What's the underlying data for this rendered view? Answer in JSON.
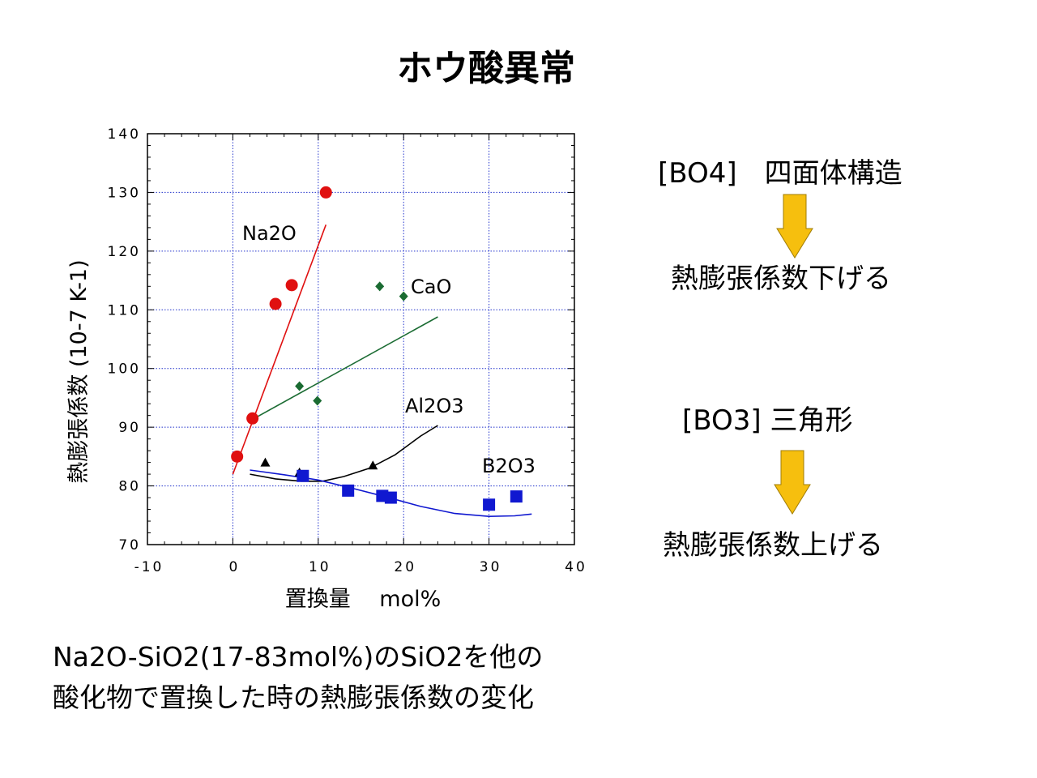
{
  "page": {
    "title": "ホウ酸異常",
    "side": {
      "bo4": "[BO4]　四面体構造",
      "result_down": "熱膨張係数下げる",
      "bo3": "[BO3]  三角形",
      "result_up": "熱膨張係数上げる",
      "arrow_color": "#f6bf0e",
      "arrow_icon": "down-arrow-icon"
    },
    "caption": {
      "line1": "Na2O-SiO2(17-83mol%)のSiO2を他の",
      "line2": "酸化物で置換した時の熱膨張係数の変化"
    }
  },
  "chart_data": {
    "type": "scatter",
    "title": "",
    "xlabel": "置換量　 mol%",
    "ylabel": "熱膨張係数 (10-7 K-1)",
    "xlim": [
      -10,
      40
    ],
    "ylim": [
      70,
      140
    ],
    "xticks": [
      -10,
      0,
      10,
      20,
      30,
      40
    ],
    "yticks": [
      70,
      80,
      90,
      100,
      110,
      120,
      130,
      140
    ],
    "grid": true,
    "series": [
      {
        "name": "Na2O",
        "color": "#e01010",
        "marker": "circle",
        "points": [
          [
            0.5,
            85
          ],
          [
            2.3,
            91.5
          ],
          [
            5,
            111
          ],
          [
            6.9,
            114.2
          ],
          [
            10.9,
            130
          ]
        ],
        "fit": [
          [
            0,
            82
          ],
          [
            10.9,
            124.5
          ]
        ]
      },
      {
        "name": "CaO",
        "color": "#1a6b32",
        "marker": "diamond",
        "points": [
          [
            7.8,
            97
          ],
          [
            9.9,
            94.5
          ],
          [
            17.2,
            114
          ],
          [
            20,
            112.3
          ]
        ],
        "fit": [
          [
            2.5,
            91.5
          ],
          [
            24,
            108.8
          ]
        ]
      },
      {
        "name": "Al2O3",
        "color": "#000000",
        "marker": "triangle",
        "points": [
          [
            3.8,
            84
          ],
          [
            7.8,
            82.3
          ],
          [
            16.4,
            83.5
          ]
        ],
        "fit": [
          [
            2,
            82
          ],
          [
            5,
            81.2
          ],
          [
            8,
            80.8
          ],
          [
            10.5,
            80.8
          ],
          [
            13,
            81.6
          ],
          [
            16,
            83
          ],
          [
            19,
            85.3
          ],
          [
            22,
            88.5
          ],
          [
            24,
            90.3
          ]
        ]
      },
      {
        "name": "B2O3",
        "color": "#1018d0",
        "marker": "square",
        "points": [
          [
            8.2,
            81.7
          ],
          [
            13.5,
            79.2
          ],
          [
            17.5,
            78.3
          ],
          [
            18.5,
            78
          ],
          [
            30,
            76.8
          ],
          [
            33.2,
            78.2
          ]
        ],
        "fit": [
          [
            2,
            82.7
          ],
          [
            6,
            81.9
          ],
          [
            10,
            81
          ],
          [
            14,
            79.6
          ],
          [
            18,
            78.1
          ],
          [
            22,
            76.5
          ],
          [
            26,
            75.3
          ],
          [
            30,
            74.8
          ],
          [
            33,
            74.9
          ],
          [
            35,
            75.2
          ]
        ]
      }
    ]
  }
}
